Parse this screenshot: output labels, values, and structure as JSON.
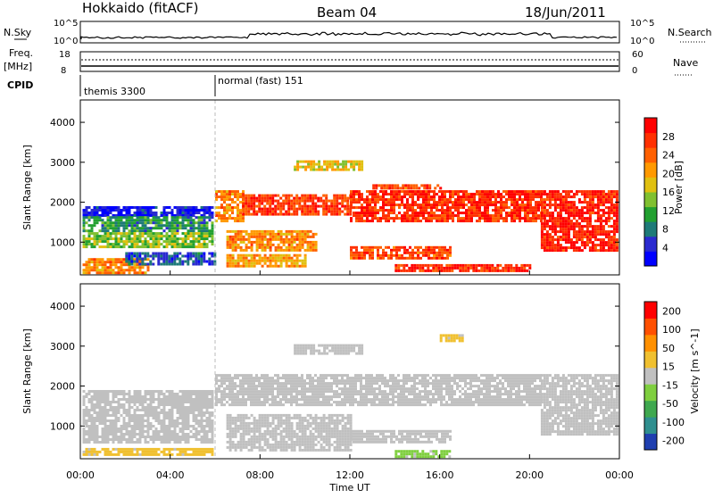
{
  "header": {
    "radar": "Hokkaido (fitACF)",
    "beam": "Beam 04",
    "date": "18/Jun/2011"
  },
  "top_panels": {
    "nsky_label": "N.Sky",
    "nsearch_label": "N.Search",
    "noise_ticks_left": [
      "10^5",
      "10^0"
    ],
    "noise_ticks_right": [
      "10^5",
      "10^0"
    ],
    "freq_label": "Freq.",
    "freq_unit": "[MHz]",
    "freq_ticks": [
      "18",
      "8"
    ],
    "nave_label": "Nave",
    "nave_ticks": [
      "60",
      "0"
    ],
    "cpid_label": "CPID",
    "cpid_segments": [
      {
        "start_hour": 0,
        "end_hour": 6,
        "label": "themis 3300"
      },
      {
        "start_hour": 6,
        "end_hour": 24,
        "label": "normal (fast) 151"
      }
    ]
  },
  "chart_data": [
    {
      "type": "heatmap",
      "parameter": "power",
      "ylabel": "Slant Range [km]",
      "xlabel": "Time UT",
      "x_ticks": [
        "00:00",
        "04:00",
        "08:00",
        "12:00",
        "16:00",
        "20:00",
        "00:00"
      ],
      "x_range_hours": [
        0,
        24
      ],
      "y_ticks": [
        1000,
        2000,
        3000,
        4000
      ],
      "y_range": [
        180,
        4560
      ],
      "colorbar": {
        "label": "Power [dB]",
        "ticks": [
          4,
          8,
          12,
          16,
          20,
          24,
          28
        ],
        "range": [
          0,
          32
        ],
        "colors": [
          "#0000ff",
          "#2a2ad0",
          "#1e7a78",
          "#22a030",
          "#80c030",
          "#e0c010",
          "#ff9900",
          "#ff6000",
          "#ff3000",
          "#ff0000"
        ]
      },
      "regions": [
        {
          "t0": 0.1,
          "t1": 5.9,
          "r0": 1650,
          "r1": 1900,
          "value": 3
        },
        {
          "t0": 0.1,
          "t1": 5.9,
          "r0": 1250,
          "r1": 1650,
          "value": 10
        },
        {
          "t0": 0.1,
          "t1": 5.9,
          "r0": 850,
          "r1": 1250,
          "value": 14
        },
        {
          "t0": 0.1,
          "t1": 3.0,
          "r0": 250,
          "r1": 600,
          "value": 22
        },
        {
          "t0": 2.0,
          "t1": 6.0,
          "r0": 450,
          "r1": 750,
          "value": 6
        },
        {
          "t0": 6.0,
          "t1": 7.2,
          "r0": 1500,
          "r1": 2300,
          "value": 22
        },
        {
          "t0": 7.2,
          "t1": 12.0,
          "r0": 1700,
          "r1": 2200,
          "value": 27
        },
        {
          "t0": 12.0,
          "t1": 20.5,
          "r0": 1500,
          "r1": 2300,
          "value": 28
        },
        {
          "t0": 13.0,
          "t1": 16.0,
          "r0": 2350,
          "r1": 2450,
          "value": 26
        },
        {
          "t0": 9.5,
          "t1": 12.5,
          "r0": 2800,
          "r1": 3050,
          "value": 18
        },
        {
          "t0": 6.5,
          "t1": 10.5,
          "r0": 800,
          "r1": 1300,
          "value": 22
        },
        {
          "t0": 6.5,
          "t1": 10.0,
          "r0": 400,
          "r1": 700,
          "value": 20
        },
        {
          "t0": 12.0,
          "t1": 16.5,
          "r0": 600,
          "r1": 900,
          "value": 26
        },
        {
          "t0": 14.0,
          "t1": 20.0,
          "r0": 250,
          "r1": 450,
          "value": 28
        },
        {
          "t0": 20.5,
          "t1": 23.9,
          "r0": 800,
          "r1": 2300,
          "value": 29
        }
      ]
    },
    {
      "type": "heatmap",
      "parameter": "velocity",
      "ylabel": "Slant Range [km]",
      "xlabel": "Time UT",
      "x_ticks": [
        "00:00",
        "04:00",
        "08:00",
        "12:00",
        "16:00",
        "20:00",
        "00:00"
      ],
      "x_range_hours": [
        0,
        24
      ],
      "y_ticks": [
        1000,
        2000,
        3000,
        4000
      ],
      "y_range": [
        180,
        4560
      ],
      "colorbar": {
        "label": "Velocity [m s^-1]",
        "ticks": [
          "200",
          "100",
          "50",
          "15",
          "-15",
          "-50",
          "-100",
          "-200"
        ],
        "range": [
          -250,
          250
        ],
        "colors": [
          "#1f3fb0",
          "#2f8f8f",
          "#3fa84f",
          "#7fcf3f",
          "#c0c0c0",
          "#f0c030",
          "#ff9000",
          "#ff5000",
          "#ff0000"
        ]
      },
      "regions": [
        {
          "t0": 0.1,
          "t1": 5.9,
          "r0": 600,
          "r1": 1900,
          "value": 0
        },
        {
          "t0": 0.1,
          "t1": 5.9,
          "r0": 250,
          "r1": 450,
          "value": 40
        },
        {
          "t0": 6.0,
          "t1": 20.5,
          "r0": 1500,
          "r1": 2300,
          "value": 0
        },
        {
          "t0": 6.5,
          "t1": 12.0,
          "r0": 400,
          "r1": 1300,
          "value": 0
        },
        {
          "t0": 12.0,
          "t1": 16.5,
          "r0": 600,
          "r1": 900,
          "value": 0
        },
        {
          "t0": 14.0,
          "t1": 16.5,
          "r0": 250,
          "r1": 400,
          "value": -40
        },
        {
          "t0": 9.5,
          "t1": 12.5,
          "r0": 2800,
          "r1": 3050,
          "value": 0
        },
        {
          "t0": 16.0,
          "t1": 17.0,
          "r0": 3150,
          "r1": 3300,
          "value": 40
        },
        {
          "t0": 20.5,
          "t1": 23.9,
          "r0": 800,
          "r1": 2300,
          "value": 0
        }
      ]
    }
  ]
}
